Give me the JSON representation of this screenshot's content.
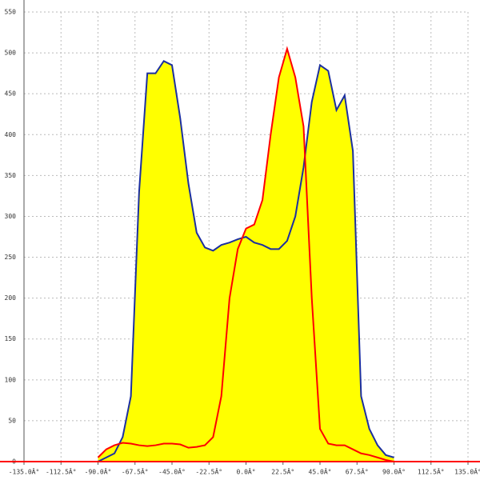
{
  "chart_data": {
    "type": "area",
    "x": [
      -90,
      -85,
      -80,
      -75,
      -70,
      -65,
      -60,
      -55,
      -50,
      -45,
      -40,
      -35,
      -30,
      -25,
      -20,
      -15,
      -10,
      -5,
      0,
      5,
      10,
      15,
      20,
      25,
      30,
      35,
      40,
      45,
      50,
      55,
      60,
      65,
      70,
      75,
      80,
      85,
      90
    ],
    "series": [
      {
        "color": "#1c2fa0",
        "fill": "#ffff00",
        "values": [
          0,
          5,
          10,
          30,
          80,
          330,
          475,
          475,
          490,
          485,
          420,
          340,
          280,
          262,
          258,
          265,
          268,
          272,
          275,
          268,
          265,
          260,
          260,
          270,
          300,
          360,
          440,
          485,
          478,
          430,
          448,
          380,
          80,
          40,
          20,
          8,
          5
        ]
      },
      {
        "color": "#ff0000",
        "fill": "#ffff00",
        "values": [
          5,
          15,
          20,
          23,
          22,
          20,
          19,
          20,
          22,
          22,
          21,
          17,
          18,
          20,
          30,
          80,
          200,
          260,
          285,
          290,
          320,
          400,
          470,
          505,
          470,
          410,
          200,
          40,
          22,
          20,
          20,
          15,
          10,
          8,
          5,
          2,
          0
        ]
      }
    ],
    "xlim": [
      -135,
      135
    ],
    "ylim": [
      0,
      550
    ],
    "xticks": [
      {
        "value": -135,
        "label": "-135.0Â°"
      },
      {
        "value": -112.5,
        "label": "-112.5Â°"
      },
      {
        "value": -90,
        "label": "-90.0Â°"
      },
      {
        "value": -67.5,
        "label": "-67.5Â°"
      },
      {
        "value": -45,
        "label": "-45.0Â°"
      },
      {
        "value": -22.5,
        "label": "-22.5Â°"
      },
      {
        "value": 0,
        "label": "0.0Â°"
      },
      {
        "value": 22.5,
        "label": "22.5Â°"
      },
      {
        "value": 45,
        "label": "45.0Â°"
      },
      {
        "value": 67.5,
        "label": "67.5Â°"
      },
      {
        "value": 90,
        "label": "90.0Â°"
      },
      {
        "value": 112.5,
        "label": "112.5Â°"
      },
      {
        "value": 135,
        "label": "135.0Â°"
      }
    ],
    "yticks": [
      0,
      50,
      100,
      150,
      200,
      250,
      300,
      350,
      400,
      450,
      500,
      550
    ],
    "grid": true
  }
}
